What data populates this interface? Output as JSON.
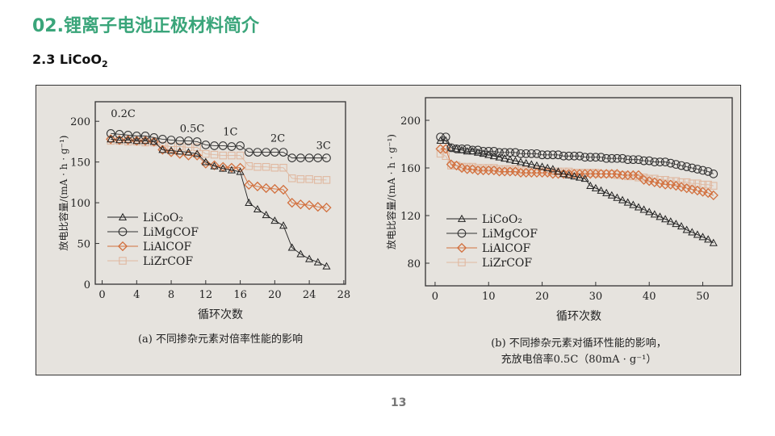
{
  "slide": {
    "title": "02.锂离子电池正极材料简介",
    "subtitle_main": "2.3 LiCoO",
    "subtitle_sub": "2",
    "page_number": "13"
  },
  "colors": {
    "title": "#3aa57a",
    "LiCoO2": "#222222",
    "LiMgCOF": "#333333",
    "LiAlCOF": "#d2703e",
    "LiZrCOF": "#e0b8a0"
  },
  "chart_data": [
    {
      "type": "line",
      "caption": "(a) 不同掺杂元素对倍率性能的影响",
      "xlabel": "循环次数",
      "ylabel": "放电比容量/(mA · h · g⁻¹)",
      "xlim": [
        -0.8,
        28.2
      ],
      "ylim": [
        0,
        224
      ],
      "xticks": [
        0,
        4,
        8,
        12,
        16,
        20,
        24,
        28
      ],
      "yticks": [
        0,
        50,
        100,
        150,
        200
      ],
      "annotations": [
        "0.2C",
        "0.5C",
        "1C",
        "2C",
        "3C"
      ],
      "legend": "left-middle",
      "series": [
        {
          "name": "LiCoO2",
          "label": "LiCoO₂",
          "marker": "triangle",
          "values": [
            178,
            177,
            177,
            176,
            176,
            175,
            165,
            164,
            163,
            162,
            160,
            150,
            145,
            142,
            140,
            138,
            100,
            92,
            85,
            78,
            72,
            45,
            37,
            31,
            27,
            22
          ]
        },
        {
          "name": "LiMgCOF",
          "label": "LiMgCOF",
          "marker": "circle",
          "values": [
            185,
            184,
            183,
            182,
            182,
            180,
            178,
            177,
            176,
            176,
            175,
            171,
            170,
            170,
            169,
            170,
            162,
            162,
            162,
            162,
            162,
            155,
            155,
            155,
            155,
            155
          ]
        },
        {
          "name": "LiAlCOF",
          "label": "LiAlCOF",
          "marker": "diamond",
          "values": [
            178,
            177,
            177,
            176,
            176,
            175,
            165,
            162,
            160,
            158,
            158,
            148,
            146,
            144,
            143,
            143,
            122,
            120,
            118,
            117,
            116,
            100,
            98,
            97,
            95,
            94
          ]
        },
        {
          "name": "LiZrCOF",
          "label": "LiZrCOF",
          "marker": "square",
          "values": [
            176,
            176,
            175,
            175,
            174,
            174,
            170,
            169,
            169,
            168,
            168,
            160,
            159,
            158,
            158,
            158,
            145,
            144,
            144,
            143,
            143,
            130,
            129,
            129,
            128,
            128
          ]
        }
      ]
    },
    {
      "type": "line",
      "caption": "(b) 不同掺杂元素对循环性能的影响，",
      "caption2": "充放电倍率0.5C（80mA · g⁻¹）",
      "xlabel": "循环次数",
      "ylabel": "放电比容量/(mA · h · g⁻¹)",
      "xlim": [
        -1.8,
        55.5
      ],
      "ylim": [
        61,
        219
      ],
      "xticks": [
        0,
        10,
        20,
        30,
        40,
        50
      ],
      "yticks": [
        80,
        120,
        160,
        200
      ],
      "legend": "left-bottom",
      "series": [
        {
          "name": "LiCoO2",
          "label": "LiCoO₂",
          "marker": "triangle",
          "values": [
            183,
            183,
            177,
            176,
            175,
            174,
            174,
            173,
            172,
            171,
            170,
            169,
            168,
            167,
            166,
            165,
            164,
            163,
            162,
            161,
            160,
            159,
            157,
            155,
            154,
            153,
            152,
            151,
            145,
            143,
            141,
            139,
            137,
            135,
            133,
            131,
            129,
            127,
            125,
            123,
            121,
            119,
            117,
            115,
            113,
            111,
            108,
            106,
            104,
            102,
            100,
            97
          ]
        },
        {
          "name": "LiMgCOF",
          "label": "LiMgCOF",
          "marker": "circle",
          "values": [
            186,
            186,
            177,
            176,
            176,
            176,
            175,
            175,
            174,
            174,
            174,
            173,
            173,
            173,
            173,
            172,
            172,
            172,
            172,
            171,
            171,
            171,
            171,
            170,
            170,
            170,
            170,
            169,
            169,
            169,
            169,
            168,
            168,
            168,
            168,
            167,
            167,
            167,
            166,
            166,
            165,
            165,
            165,
            164,
            163,
            162,
            161,
            160,
            159,
            158,
            157,
            155
          ]
        },
        {
          "name": "LiAlCOF",
          "label": "LiAlCOF",
          "marker": "diamond",
          "values": [
            176,
            176,
            163,
            162,
            160,
            159,
            159,
            158,
            158,
            158,
            158,
            157,
            157,
            157,
            157,
            156,
            156,
            156,
            156,
            156,
            156,
            155,
            155,
            155,
            155,
            155,
            155,
            155,
            155,
            155,
            155,
            155,
            155,
            155,
            154,
            154,
            154,
            154,
            150,
            149,
            148,
            147,
            146,
            146,
            145,
            144,
            143,
            142,
            141,
            140,
            139,
            137
          ]
        },
        {
          "name": "LiZrCOF",
          "label": "LiZrCOF",
          "marker": "square",
          "values": [
            172,
            170,
            162,
            162,
            161,
            161,
            161,
            160,
            160,
            160,
            160,
            159,
            159,
            159,
            159,
            158,
            158,
            158,
            158,
            158,
            157,
            157,
            157,
            157,
            157,
            156,
            156,
            156,
            156,
            156,
            155,
            155,
            155,
            154,
            154,
            153,
            153,
            152,
            152,
            151,
            151,
            150,
            150,
            149,
            149,
            148,
            148,
            147,
            147,
            146,
            146,
            145
          ]
        }
      ]
    }
  ]
}
